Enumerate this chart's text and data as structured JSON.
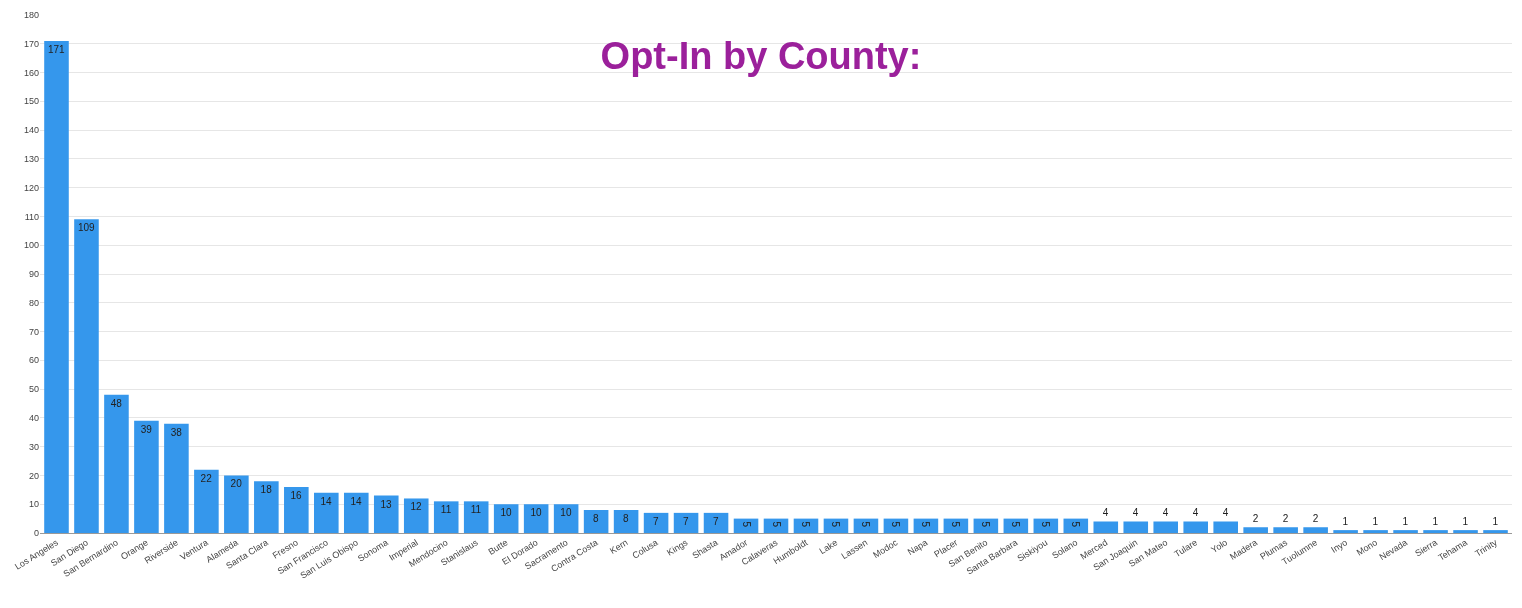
{
  "chart_data": {
    "type": "bar",
    "title": "Opt-In by County:",
    "categories": [
      "Los Angeles",
      "San Diego",
      "San Bernardino",
      "Orange",
      "Riverside",
      "Ventura",
      "Alameda",
      "Santa Clara",
      "Fresno",
      "San Francisco",
      "San Luis Obispo",
      "Sonoma",
      "Imperial",
      "Mendocino",
      "Stanislaus",
      "Butte",
      "El Dorado",
      "Sacramento",
      "Contra Costa",
      "Kern",
      "Colusa",
      "Kings",
      "Shasta",
      "Amador",
      "Calaveras",
      "Humboldt",
      "Lake",
      "Lassen",
      "Modoc",
      "Napa",
      "Placer",
      "San Benito",
      "Santa Barbara",
      "Siskiyou",
      "Solano",
      "Merced",
      "San Joaquin",
      "San Mateo",
      "Tulare",
      "Yolo",
      "Madera",
      "Plumas",
      "Tuolumne",
      "Inyo",
      "Mono",
      "Nevada",
      "Sierra",
      "Tehama",
      "Trinity"
    ],
    "values": [
      171,
      109,
      48,
      39,
      38,
      22,
      20,
      18,
      16,
      14,
      14,
      13,
      12,
      11,
      11,
      10,
      10,
      10,
      8,
      8,
      7,
      7,
      7,
      5,
      5,
      5,
      5,
      5,
      5,
      5,
      5,
      5,
      5,
      5,
      5,
      4,
      4,
      4,
      4,
      4,
      2,
      2,
      2,
      1,
      1,
      1,
      1,
      1,
      1
    ],
    "color": "#3597ec",
    "ylim": [
      0,
      180
    ],
    "yticks": [
      0,
      10,
      20,
      30,
      40,
      50,
      60,
      70,
      80,
      90,
      100,
      110,
      120,
      130,
      140,
      150,
      160,
      170,
      180
    ],
    "grid": "y",
    "data_labels": true
  }
}
